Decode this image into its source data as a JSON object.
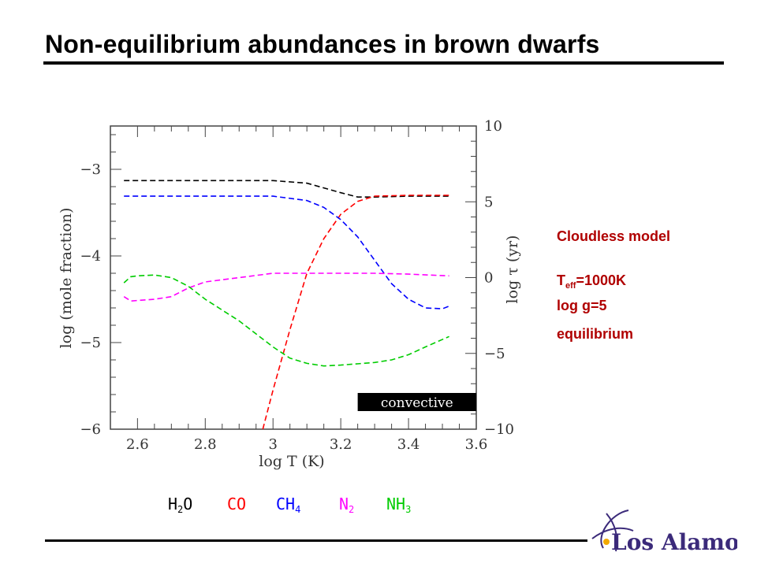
{
  "title": "Non-equilibrium abundances in brown dwarfs",
  "sidebar": {
    "line1": "Cloudless model",
    "teff_prefix": "T",
    "teff_sub": "eff",
    "teff_value": "=1000K",
    "logg": "log g=5",
    "line4": "equilibrium"
  },
  "legend": [
    {
      "base": "H",
      "sub": "2",
      "rest": "O",
      "color": "#000000"
    },
    {
      "base": "CO",
      "sub": "",
      "rest": "",
      "color": "#ff0000"
    },
    {
      "base": "CH",
      "sub": "4",
      "rest": "",
      "color": "#0000ff"
    },
    {
      "base": "N",
      "sub": "2",
      "rest": "",
      "color": "#ff00ff"
    },
    {
      "base": "NH",
      "sub": "3",
      "rest": "",
      "color": "#00cc00"
    }
  ],
  "logo": {
    "text": "Los Alamos",
    "accent": "#3b2a7a"
  },
  "chart_data": {
    "type": "line",
    "xlabel": "log T (K)",
    "ylabel": "log (mole fraction)",
    "y2label": "log τ (yr)",
    "xlim": [
      2.52,
      3.6
    ],
    "ylim": [
      -6,
      -2.5
    ],
    "y2lim": [
      -10,
      10
    ],
    "xticks": [
      "2.6",
      "2.8",
      "3",
      "3.2",
      "3.4",
      "3.6"
    ],
    "yticks": [
      "−3",
      "−4",
      "−5",
      "−6"
    ],
    "y2ticks": [
      "10",
      "5",
      "0",
      "−5",
      "−10"
    ],
    "annotation": "convective",
    "convective_range": [
      3.25,
      3.6
    ],
    "series": [
      {
        "name": "H2O",
        "color": "#000000",
        "x": [
          2.56,
          2.7,
          2.9,
          3.0,
          3.1,
          3.2,
          3.25,
          3.3,
          3.4,
          3.52
        ],
        "y": [
          -3.13,
          -3.13,
          -3.13,
          -3.13,
          -3.16,
          -3.27,
          -3.32,
          -3.32,
          -3.31,
          -3.31
        ]
      },
      {
        "name": "CO",
        "color": "#ff0000",
        "x": [
          2.97,
          3.0,
          3.05,
          3.1,
          3.15,
          3.2,
          3.25,
          3.3,
          3.4,
          3.52
        ],
        "y": [
          -6.0,
          -5.55,
          -4.85,
          -4.2,
          -3.8,
          -3.52,
          -3.37,
          -3.31,
          -3.3,
          -3.3
        ]
      },
      {
        "name": "CH4",
        "color": "#0000ff",
        "x": [
          2.56,
          2.7,
          2.9,
          3.0,
          3.1,
          3.15,
          3.2,
          3.25,
          3.3,
          3.35,
          3.4,
          3.45,
          3.5,
          3.52
        ],
        "y": [
          -3.31,
          -3.31,
          -3.31,
          -3.31,
          -3.36,
          -3.44,
          -3.58,
          -3.78,
          -4.05,
          -4.32,
          -4.5,
          -4.6,
          -4.61,
          -4.58
        ]
      },
      {
        "name": "N2",
        "color": "#ff00ff",
        "x": [
          2.56,
          2.58,
          2.65,
          2.7,
          2.75,
          2.8,
          2.9,
          3.0,
          3.1,
          3.2,
          3.3,
          3.4,
          3.52
        ],
        "y": [
          -4.47,
          -4.52,
          -4.5,
          -4.47,
          -4.37,
          -4.3,
          -4.25,
          -4.2,
          -4.2,
          -4.2,
          -4.2,
          -4.21,
          -4.23
        ]
      },
      {
        "name": "NH3",
        "color": "#00cc00",
        "x": [
          2.56,
          2.58,
          2.6,
          2.65,
          2.7,
          2.75,
          2.8,
          2.9,
          3.0,
          3.05,
          3.1,
          3.15,
          3.2,
          3.3,
          3.35,
          3.4,
          3.45,
          3.52
        ],
        "y": [
          -4.31,
          -4.24,
          -4.23,
          -4.22,
          -4.25,
          -4.35,
          -4.5,
          -4.75,
          -5.05,
          -5.18,
          -5.24,
          -5.27,
          -5.26,
          -5.23,
          -5.2,
          -5.14,
          -5.05,
          -4.93
        ]
      }
    ]
  }
}
